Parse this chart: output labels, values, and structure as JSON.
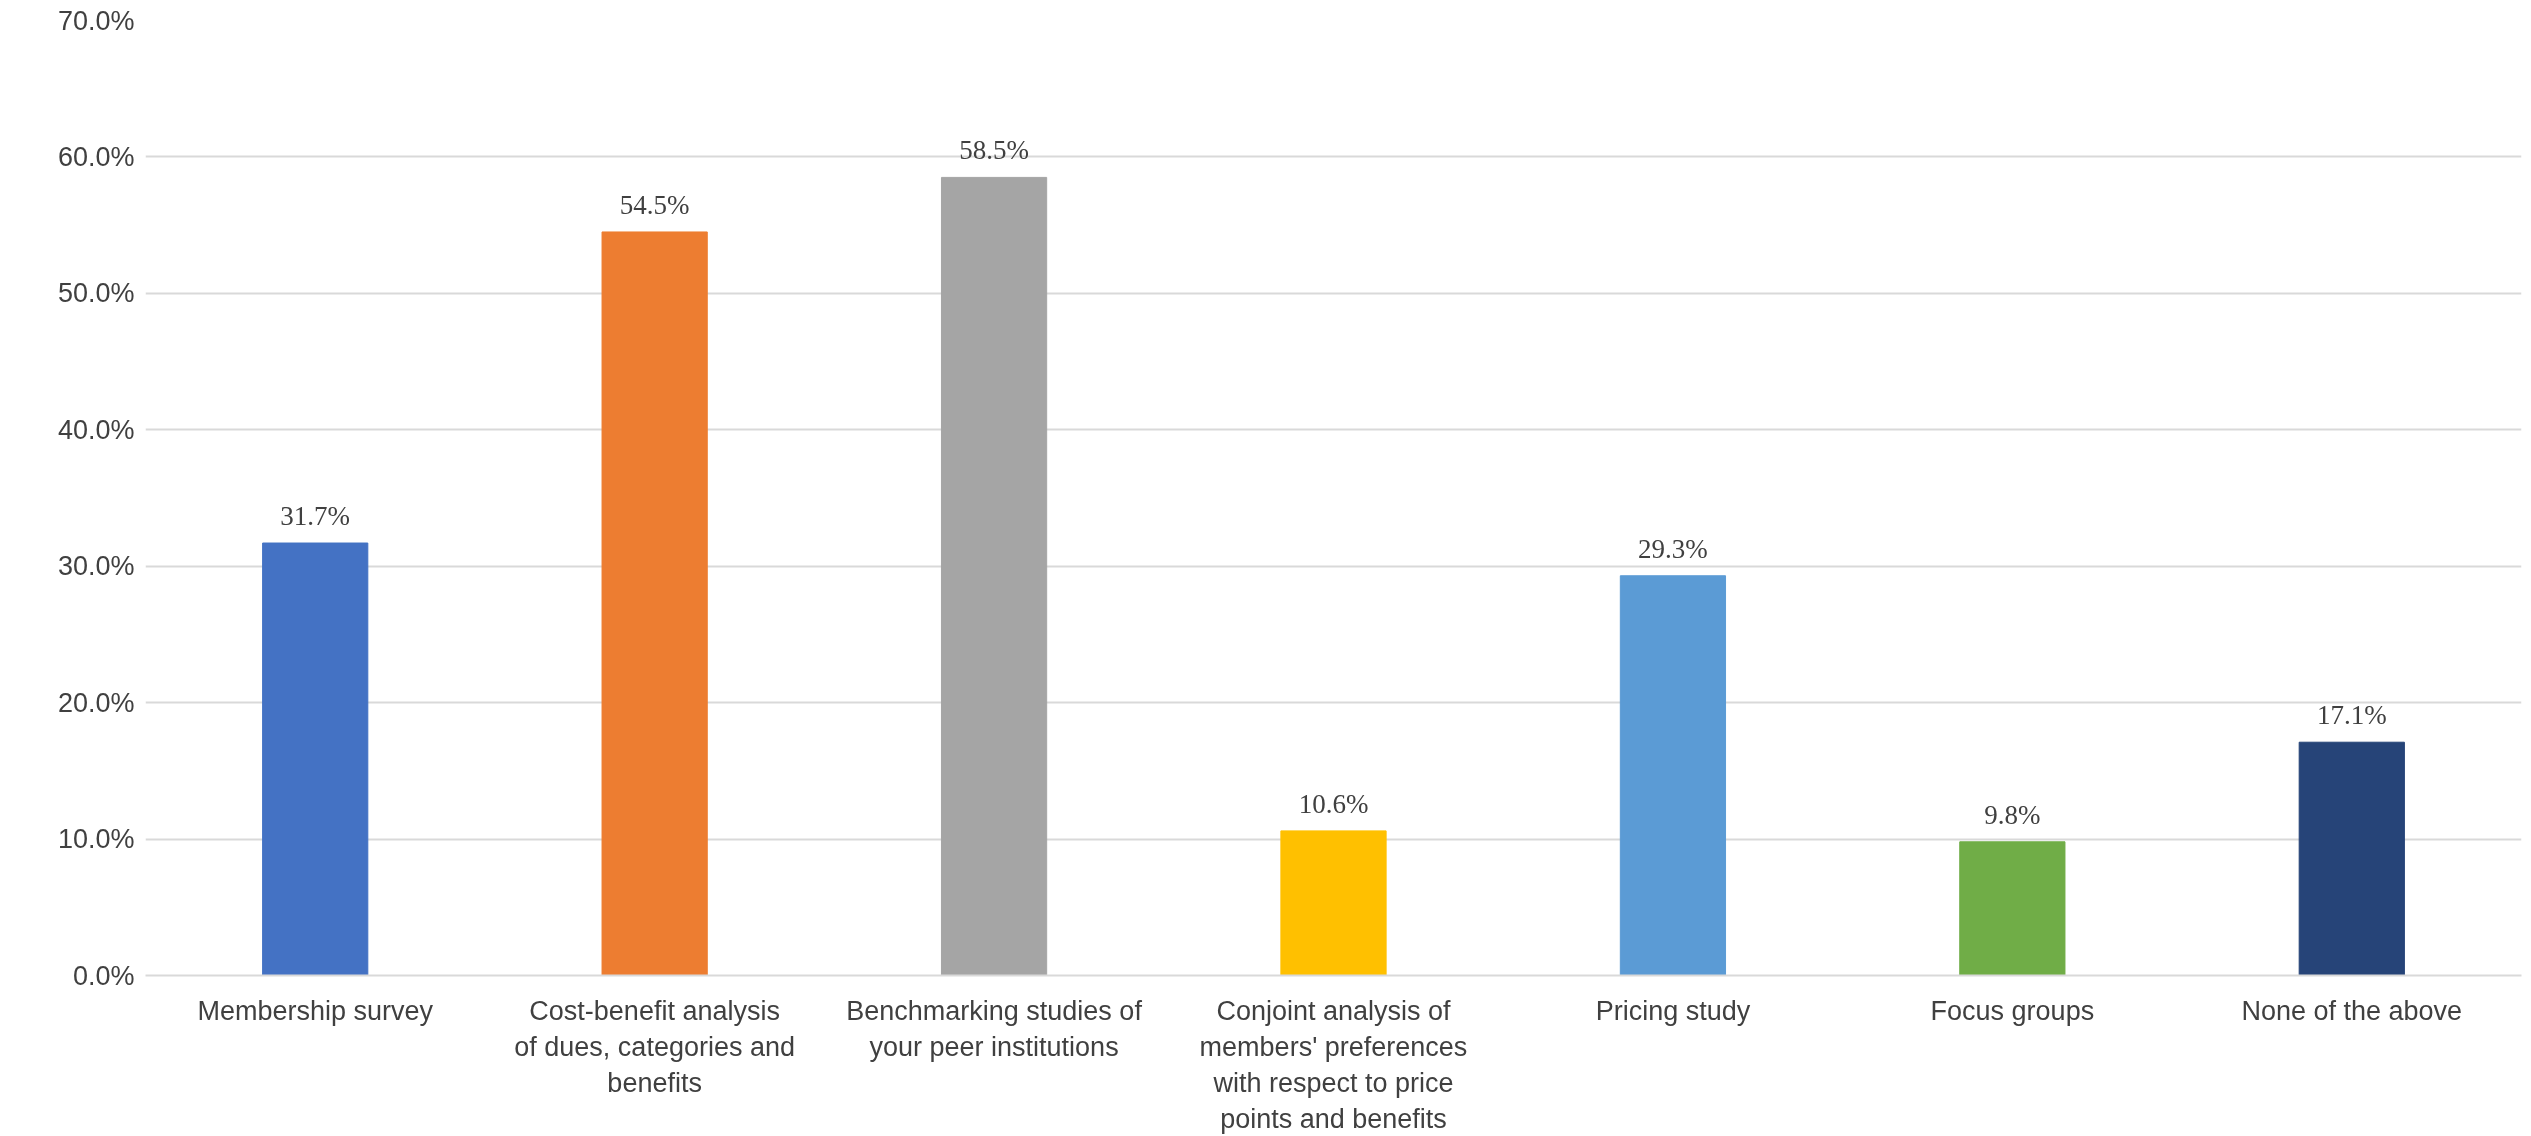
{
  "chart_data": {
    "type": "bar",
    "categories": [
      "Membership survey",
      "Cost-benefit analysis of dues, categories and benefits",
      "Benchmarking studies of your peer institutions",
      "Conjoint analysis of members' preferences with respect to price points and benefits",
      "Pricing study",
      "Focus groups",
      "None of the above"
    ],
    "values": [
      31.7,
      54.5,
      58.5,
      10.6,
      29.3,
      9.8,
      17.1
    ],
    "colors": [
      "#4472c4",
      "#ed7d31",
      "#a5a5a5",
      "#ffc000",
      "#5b9bd5",
      "#70ad47",
      "#264478"
    ],
    "value_labels": [
      "31.7%",
      "54.5%",
      "58.5%",
      "10.6%",
      "29.3%",
      "9.8%",
      "17.1%"
    ],
    "ylim": [
      0,
      70
    ],
    "yticks": [
      {
        "value": 0,
        "label": "0.0%"
      },
      {
        "value": 10,
        "label": "10.0%"
      },
      {
        "value": 20,
        "label": "20.0%"
      },
      {
        "value": 30,
        "label": "30.0%"
      },
      {
        "value": 40,
        "label": "40.0%"
      },
      {
        "value": 50,
        "label": "50.0%"
      },
      {
        "value": 60,
        "label": "60.0%"
      },
      {
        "value": 70,
        "label": "70.0%"
      }
    ],
    "grid": "y"
  }
}
